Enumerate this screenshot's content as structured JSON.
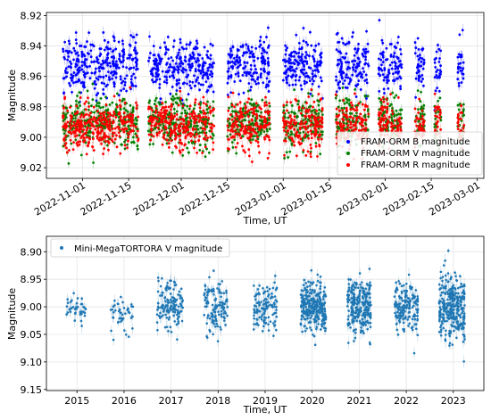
{
  "chart_data": [
    {
      "type": "scatter",
      "title": "",
      "xlabel": "Time, UT",
      "ylabel": "Magnitude",
      "y_inverted": true,
      "ylim": [
        9.027,
        8.918
      ],
      "xlim": [
        "2022-10-21",
        "2023-03-03"
      ],
      "yticks": [
        "8.92",
        "8.94",
        "8.96",
        "8.98",
        "9.00",
        "9.02"
      ],
      "xticks": [
        "2022-11-01",
        "2022-11-15",
        "2022-12-01",
        "2022-12-15",
        "2023-01-01",
        "2023-01-15",
        "2023-02-01",
        "2023-02-15",
        "2023-03-01"
      ],
      "grid": true,
      "legend_position": "lower-right",
      "series": [
        {
          "name": "FRAM-ORM B magnitude",
          "color": "#0000ff",
          "center": 8.953,
          "spread": 0.009,
          "x_ranges": [
            [
              "2022-10-26",
              "2022-11-18"
            ],
            [
              "2022-11-21",
              "2022-12-11"
            ],
            [
              "2022-12-15",
              "2022-12-28"
            ],
            [
              "2023-01-01",
              "2023-01-13"
            ],
            [
              "2023-01-17",
              "2023-01-27"
            ],
            [
              "2023-01-30",
              "2023-02-06"
            ],
            [
              "2023-02-10",
              "2023-02-13"
            ],
            [
              "2023-02-16",
              "2023-02-18"
            ],
            [
              "2023-02-23",
              "2023-02-25"
            ]
          ]
        },
        {
          "name": "FRAM-ORM V magnitude",
          "color": "#008000",
          "center": 8.99,
          "spread": 0.008,
          "x_ranges": [
            [
              "2022-10-26",
              "2022-11-18"
            ],
            [
              "2022-11-21",
              "2022-12-11"
            ],
            [
              "2022-12-15",
              "2022-12-28"
            ],
            [
              "2023-01-01",
              "2023-01-13"
            ],
            [
              "2023-01-17",
              "2023-01-27"
            ],
            [
              "2023-01-30",
              "2023-02-06"
            ],
            [
              "2023-02-10",
              "2023-02-13"
            ],
            [
              "2023-02-16",
              "2023-02-18"
            ],
            [
              "2023-02-23",
              "2023-02-25"
            ]
          ]
        },
        {
          "name": "FRAM-ORM R magnitude",
          "color": "#ff0000",
          "center": 8.992,
          "spread": 0.008,
          "x_ranges": [
            [
              "2022-10-26",
              "2022-11-18"
            ],
            [
              "2022-11-21",
              "2022-12-11"
            ],
            [
              "2022-12-15",
              "2022-12-28"
            ],
            [
              "2023-01-01",
              "2023-01-13"
            ],
            [
              "2023-01-17",
              "2023-01-27"
            ],
            [
              "2023-01-30",
              "2023-02-06"
            ],
            [
              "2023-02-10",
              "2023-02-13"
            ],
            [
              "2023-02-16",
              "2023-02-18"
            ],
            [
              "2023-02-23",
              "2023-02-25"
            ]
          ]
        }
      ]
    },
    {
      "type": "scatter",
      "title": "",
      "xlabel": "Time, UT",
      "ylabel": "Magnitude",
      "y_inverted": true,
      "ylim": [
        9.152,
        8.872
      ],
      "xlim": [
        2014.35,
        2023.65
      ],
      "yticks": [
        "8.90",
        "8.95",
        "9.00",
        "9.05",
        "9.10",
        "9.15"
      ],
      "xticks": [
        "2015",
        "2016",
        "2017",
        "2018",
        "2019",
        "2020",
        "2021",
        "2022",
        "2023"
      ],
      "grid": true,
      "legend_position": "top-left",
      "series": [
        {
          "name": "Mini-MegaTORTORA V magnitude",
          "color": "#1f77b4",
          "clusters": [
            {
              "x_from": 2014.75,
              "x_to": 2015.2,
              "center": 9.005,
              "spread": 0.012,
              "count": 40
            },
            {
              "x_from": 2015.7,
              "x_to": 2016.2,
              "center": 9.015,
              "spread": 0.016,
              "count": 45
            },
            {
              "x_from": 2016.7,
              "x_to": 2017.25,
              "center": 8.995,
              "spread": 0.022,
              "count": 130
            },
            {
              "x_from": 2017.7,
              "x_to": 2018.2,
              "center": 8.998,
              "spread": 0.024,
              "count": 120
            },
            {
              "x_from": 2018.75,
              "x_to": 2019.25,
              "center": 9.002,
              "spread": 0.02,
              "count": 120
            },
            {
              "x_from": 2019.75,
              "x_to": 2020.3,
              "center": 9.0,
              "spread": 0.022,
              "count": 260
            },
            {
              "x_from": 2020.75,
              "x_to": 2021.25,
              "center": 9.0,
              "spread": 0.026,
              "count": 240
            },
            {
              "x_from": 2021.75,
              "x_to": 2022.25,
              "center": 9.0,
              "spread": 0.022,
              "count": 160
            },
            {
              "x_from": 2022.7,
              "x_to": 2023.25,
              "center": 9.0,
              "spread": 0.03,
              "count": 300
            }
          ]
        }
      ]
    }
  ]
}
